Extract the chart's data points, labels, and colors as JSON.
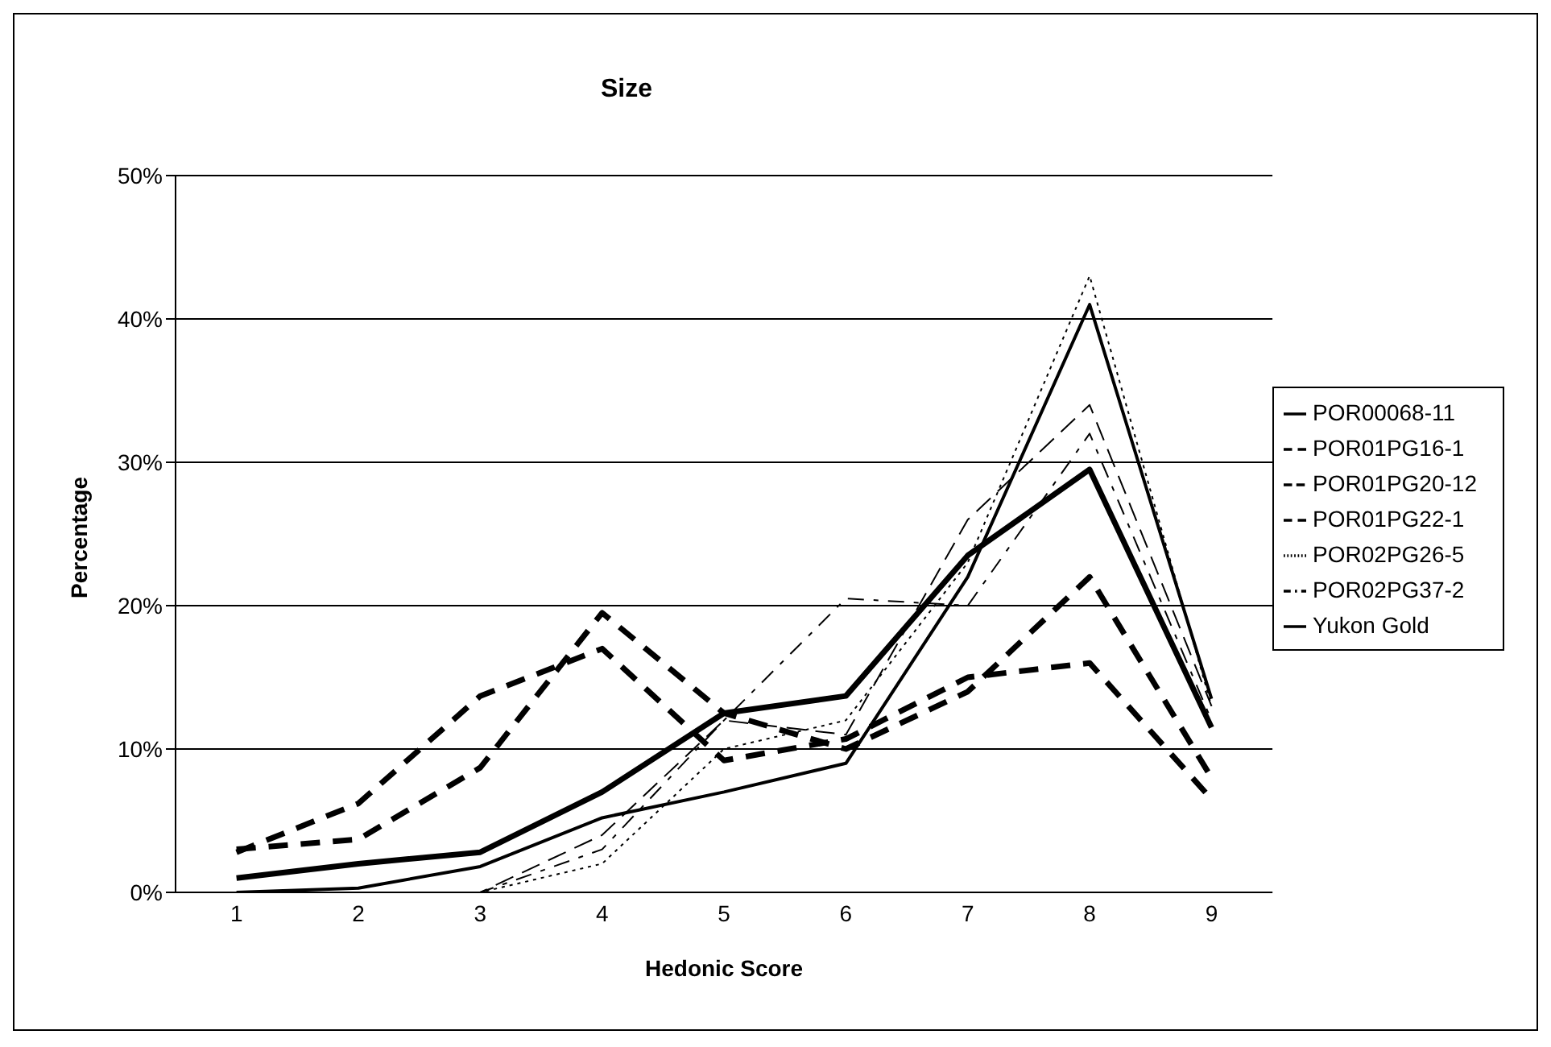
{
  "chart_data": {
    "type": "line",
    "title": "Size",
    "xlabel": "Hedonic Score",
    "ylabel": "Percentage",
    "categories": [
      "1",
      "2",
      "3",
      "4",
      "5",
      "6",
      "7",
      "8",
      "9"
    ],
    "series": [
      {
        "name": "POR02PG26-5",
        "color": "#000000",
        "line_style": "dotted",
        "values": [
          0,
          0,
          0,
          2,
          10,
          12,
          23,
          43,
          13
        ]
      },
      {
        "name": "POR00068-11",
        "color": "#000000",
        "line_style": "solid",
        "values": [
          1,
          2,
          2.8,
          7,
          12.5,
          13.7,
          23.5,
          29.5,
          11.5
        ]
      },
      {
        "name": "POR01PG22-1",
        "color": "#000000",
        "line_style": "dashed",
        "values": [
          3,
          3.7,
          8.7,
          19.5,
          12.5,
          10,
          14,
          22,
          8
        ]
      },
      {
        "name": "POR02PG37-2",
        "color": "#000000",
        "line_style": "dashed",
        "values": [
          0,
          0,
          0,
          3,
          12,
          20.5,
          20,
          32,
          12
        ]
      },
      {
        "name": "POR01PG20-12",
        "color": "#000000",
        "line_style": "dashed",
        "values": [
          0,
          0,
          0,
          4,
          12,
          11,
          26,
          34,
          13
        ]
      },
      {
        "name": "POR01PG16-1",
        "color": "#000000",
        "line_style": "dashed",
        "values": [
          2.8,
          6.2,
          13.7,
          17,
          9.2,
          10.7,
          15,
          16,
          6.5
        ]
      },
      {
        "name": "Yukon Gold",
        "color": "#000000",
        "line_style": "solid",
        "values": [
          0,
          0.3,
          1.8,
          5.2,
          7,
          9,
          22,
          41,
          13.5
        ]
      }
    ],
    "ylim": [
      0,
      50
    ],
    "yticks": [
      {
        "value": 0,
        "label": "0%"
      },
      {
        "value": 10,
        "label": "10%"
      },
      {
        "value": 20,
        "label": "20%"
      },
      {
        "value": 30,
        "label": "30%"
      },
      {
        "value": 40,
        "label": "40%"
      },
      {
        "value": 50,
        "label": "50%"
      }
    ],
    "grid": "y",
    "legend": "right",
    "marker": "none"
  }
}
